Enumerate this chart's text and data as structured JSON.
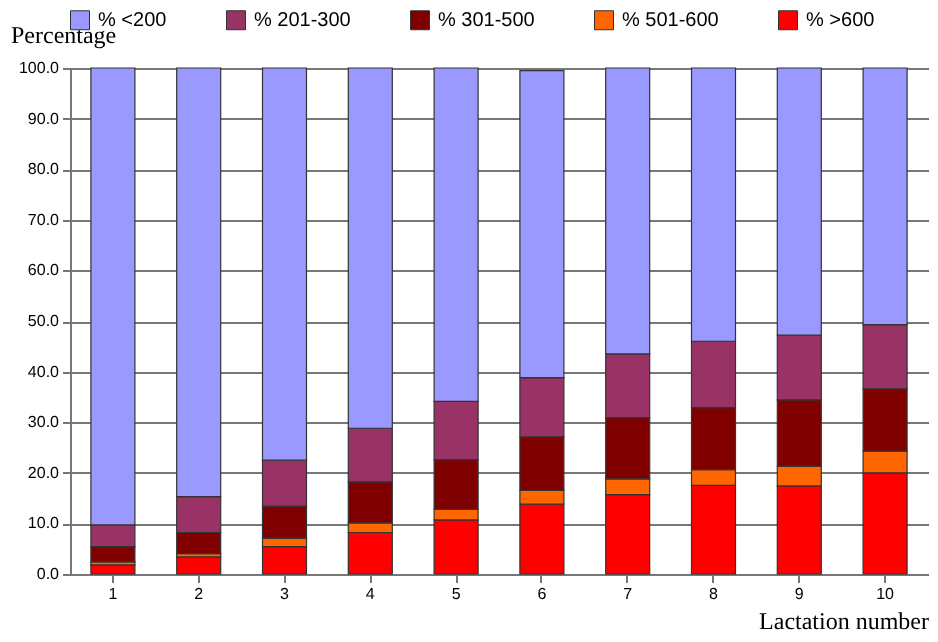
{
  "chart_data": {
    "type": "bar",
    "stacked": true,
    "xlabel": "Lactation number",
    "ylabel": "Percentage",
    "categories": [
      "1",
      "2",
      "3",
      "4",
      "5",
      "6",
      "7",
      "8",
      "9",
      "10"
    ],
    "series": [
      {
        "name": "% >600",
        "color": "#ff0000",
        "values": [
          1.8,
          3.4,
          5.4,
          8.2,
          10.7,
          13.8,
          15.7,
          17.5,
          17.4,
          20.0
        ]
      },
      {
        "name": "% 501-600",
        "color": "#ff6600",
        "values": [
          0.6,
          0.6,
          1.7,
          1.9,
          2.1,
          2.7,
          3.1,
          3.1,
          3.9,
          4.3
        ]
      },
      {
        "name": "% 301-500",
        "color": "#800000",
        "values": [
          3.0,
          4.2,
          6.3,
          8.1,
          9.8,
          10.6,
          12.1,
          12.3,
          13.1,
          12.3
        ]
      },
      {
        "name": "% 201-300",
        "color": "#993366",
        "values": [
          4.3,
          7.1,
          9.1,
          10.6,
          11.5,
          11.7,
          12.6,
          13.1,
          12.8,
          12.7
        ]
      },
      {
        "name": "% <200",
        "color": "#9999ff",
        "values": [
          90.3,
          84.7,
          77.5,
          71.2,
          65.9,
          60.7,
          56.5,
          54.0,
          52.8,
          50.7
        ]
      }
    ],
    "ylim": [
      0,
      100
    ],
    "yticks": [
      {
        "value": 0,
        "label": "0.0"
      },
      {
        "value": 10,
        "label": "10.0"
      },
      {
        "value": 20,
        "label": "20.0"
      },
      {
        "value": 30,
        "label": "30.0"
      },
      {
        "value": 40,
        "label": "40.0"
      },
      {
        "value": 50,
        "label": "50.0"
      },
      {
        "value": 60,
        "label": "60.0"
      },
      {
        "value": 70,
        "label": "70.0"
      },
      {
        "value": 80,
        "label": "80.0"
      },
      {
        "value": 90,
        "label": "90.0"
      },
      {
        "value": 100,
        "label": "100.0"
      }
    ],
    "grid": "y",
    "legend": "top"
  }
}
